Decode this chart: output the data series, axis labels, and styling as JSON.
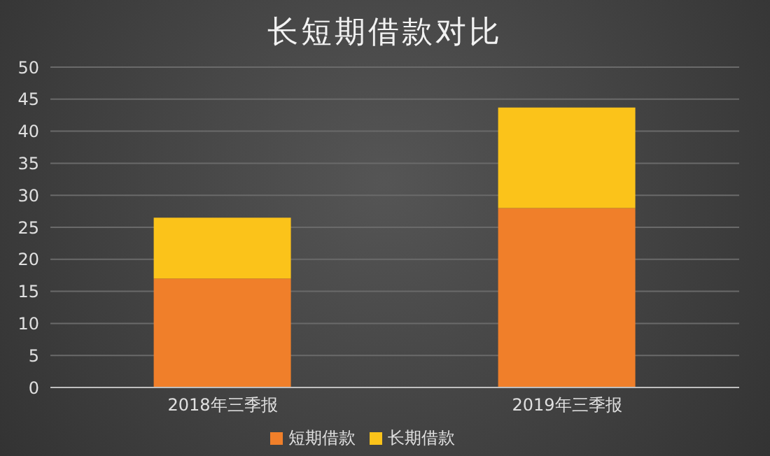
{
  "chart_data": {
    "type": "bar",
    "title": "长短期借款对比",
    "categories": [
      "2018年三季报",
      "2019年三季报"
    ],
    "stacked": true,
    "series": [
      {
        "name": "短期借款",
        "color": "#f07f2a",
        "values": [
          17,
          28
        ]
      },
      {
        "name": "长期借款",
        "color": "#fbc31a",
        "values": [
          9.5,
          15.7
        ]
      }
    ],
    "ylim": [
      0,
      50
    ],
    "yticks": [
      0,
      5,
      10,
      15,
      20,
      25,
      30,
      35,
      40,
      45,
      50
    ],
    "grid": "y",
    "legend": "bottom"
  }
}
